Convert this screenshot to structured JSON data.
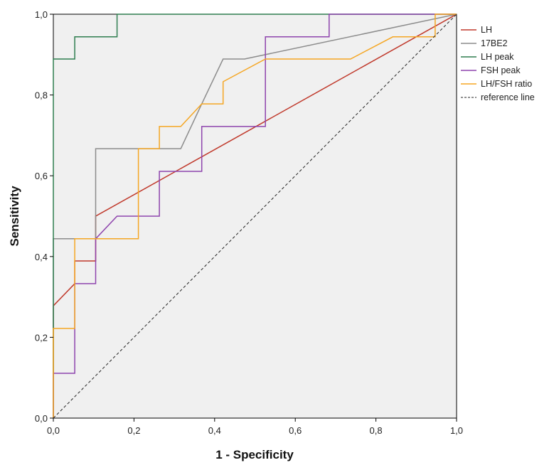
{
  "chart_data": {
    "type": "line",
    "title": "",
    "xlabel": "1 - Specificity",
    "ylabel": "Sensitivity",
    "xlim": [
      0,
      1
    ],
    "ylim": [
      0,
      1
    ],
    "x_ticks": [
      "0,0",
      "0,2",
      "0,4",
      "0,6",
      "0,8",
      "1,0"
    ],
    "y_ticks": [
      "0,0",
      "0,2",
      "0,4",
      "0,6",
      "0,8",
      "1,0"
    ],
    "legend_position": "right",
    "series": [
      {
        "name": "LH",
        "color": "#c0392b",
        "dashed": false,
        "points": [
          [
            0,
            0
          ],
          [
            0,
            0.278
          ],
          [
            0.053,
            0.333
          ],
          [
            0.053,
            0.389
          ],
          [
            0.105,
            0.389
          ],
          [
            0.105,
            0.5
          ],
          [
            1,
            1
          ]
        ]
      },
      {
        "name": "17BE2",
        "color": "#8c8c8c",
        "dashed": false,
        "points": [
          [
            0,
            0
          ],
          [
            0,
            0.444
          ],
          [
            0.105,
            0.444
          ],
          [
            0.105,
            0.667
          ],
          [
            0.316,
            0.667
          ],
          [
            0.368,
            0.778
          ],
          [
            0.421,
            0.889
          ],
          [
            0.474,
            0.889
          ],
          [
            1,
            1
          ]
        ]
      },
      {
        "name": "LH peak",
        "color": "#2e7d4f",
        "dashed": false,
        "points": [
          [
            0,
            0
          ],
          [
            0,
            0.889
          ],
          [
            0.053,
            0.889
          ],
          [
            0.053,
            0.944
          ],
          [
            0.158,
            0.944
          ],
          [
            0.158,
            1
          ],
          [
            1,
            1
          ]
        ]
      },
      {
        "name": "FSH peak",
        "color": "#8e44ad",
        "dashed": false,
        "points": [
          [
            0,
            0
          ],
          [
            0,
            0.111
          ],
          [
            0.053,
            0.111
          ],
          [
            0.053,
            0.333
          ],
          [
            0.105,
            0.333
          ],
          [
            0.105,
            0.444
          ],
          [
            0.158,
            0.5
          ],
          [
            0.211,
            0.5
          ],
          [
            0.263,
            0.5
          ],
          [
            0.263,
            0.611
          ],
          [
            0.368,
            0.611
          ],
          [
            0.368,
            0.722
          ],
          [
            0.526,
            0.722
          ],
          [
            0.526,
            0.944
          ],
          [
            0.684,
            0.944
          ],
          [
            0.684,
            1
          ],
          [
            1,
            1
          ]
        ]
      },
      {
        "name": "LH/FSH ratio",
        "color": "#f5a623",
        "dashed": false,
        "points": [
          [
            0,
            0
          ],
          [
            0,
            0.222
          ],
          [
            0.053,
            0.222
          ],
          [
            0.053,
            0.444
          ],
          [
            0.211,
            0.444
          ],
          [
            0.211,
            0.667
          ],
          [
            0.263,
            0.667
          ],
          [
            0.263,
            0.722
          ],
          [
            0.316,
            0.722
          ],
          [
            0.368,
            0.778
          ],
          [
            0.421,
            0.778
          ],
          [
            0.421,
            0.833
          ],
          [
            0.526,
            0.889
          ],
          [
            0.737,
            0.889
          ],
          [
            0.842,
            0.944
          ],
          [
            0.947,
            0.944
          ],
          [
            0.947,
            1
          ],
          [
            1,
            1
          ]
        ]
      },
      {
        "name": "reference line",
        "color": "#222222",
        "dashed": true,
        "points": [
          [
            0,
            0
          ],
          [
            1,
            1
          ]
        ]
      }
    ]
  }
}
